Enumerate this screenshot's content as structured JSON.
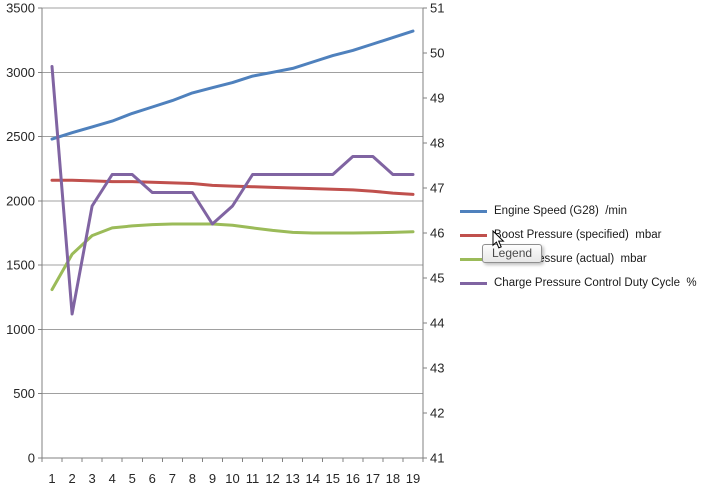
{
  "chart_data": {
    "type": "line",
    "categories": [
      1,
      2,
      3,
      4,
      5,
      6,
      7,
      8,
      9,
      10,
      11,
      12,
      13,
      14,
      15,
      16,
      17,
      18,
      19
    ],
    "series": [
      {
        "name": "Engine Speed (G28)  /min",
        "color": "#4F81BD",
        "axis": "left",
        "values": [
          2480,
          2530,
          2575,
          2620,
          2680,
          2730,
          2780,
          2840,
          2880,
          2920,
          2970,
          3000,
          3030,
          3080,
          3130,
          3170,
          3220,
          3270,
          3320
        ]
      },
      {
        "name": "Boost Pressure (specified)  mbar",
        "color": "#C0504D",
        "axis": "left",
        "values": [
          2160,
          2160,
          2155,
          2150,
          2150,
          2145,
          2140,
          2135,
          2120,
          2115,
          2110,
          2105,
          2100,
          2095,
          2090,
          2085,
          2075,
          2060,
          2050
        ]
      },
      {
        "name": "Boost Pressure (actual)  mbar",
        "color": "#9BBB59",
        "axis": "left",
        "values": [
          1310,
          1585,
          1730,
          1790,
          1805,
          1815,
          1820,
          1820,
          1820,
          1810,
          1790,
          1770,
          1755,
          1750,
          1750,
          1750,
          1752,
          1755,
          1760
        ]
      },
      {
        "name": "Charge Pressure Control Duty Cycle  %",
        "color": "#8064A2",
        "axis": "right",
        "values": [
          49.7,
          44.2,
          46.6,
          47.3,
          47.3,
          46.9,
          46.9,
          46.9,
          46.2,
          46.6,
          47.3,
          47.3,
          47.3,
          47.3,
          47.3,
          47.7,
          47.7,
          47.3,
          47.3
        ]
      }
    ],
    "axes": {
      "left": {
        "min": 0,
        "max": 3500,
        "step": 500,
        "tick_labels": [
          "0",
          "500",
          "1000",
          "1500",
          "2000",
          "2500",
          "3000",
          "3500"
        ]
      },
      "right": {
        "min": 41,
        "max": 51,
        "step": 1,
        "tick_labels": [
          "41",
          "42",
          "43",
          "44",
          "45",
          "46",
          "47",
          "48",
          "49",
          "50",
          "51"
        ]
      },
      "x": {
        "tick_labels": [
          "1",
          "2",
          "3",
          "4",
          "5",
          "6",
          "7",
          "8",
          "9",
          "10",
          "11",
          "12",
          "13",
          "14",
          "15",
          "16",
          "17",
          "18",
          "19"
        ]
      }
    },
    "grid": {
      "horizontal": true,
      "vertical": false
    },
    "gridline_color": "#A0A0A0",
    "axis_line_color": "#808080",
    "text_color": "#262626",
    "legend_position": "right",
    "plot_background": "#FFFFFF",
    "line_width": 3
  },
  "tooltip": {
    "text": "Legend"
  },
  "cursor": {
    "type": "arrow-pointer"
  }
}
